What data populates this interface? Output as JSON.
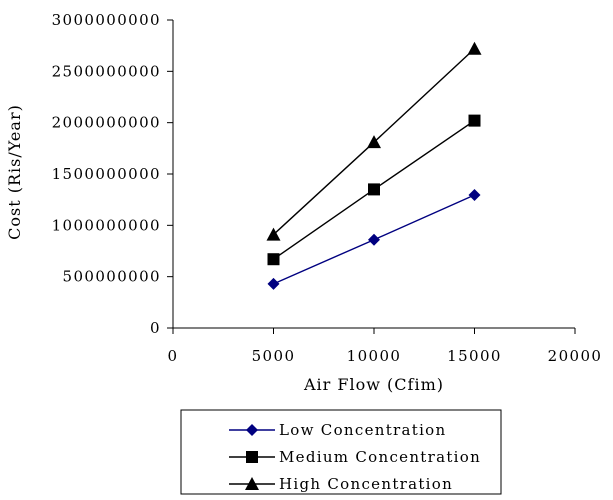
{
  "chart_data": {
    "type": "line",
    "x": [
      5000,
      10000,
      15000
    ],
    "series": [
      {
        "name": "Low Concentration",
        "values": [
          430000000,
          860000000,
          1295000000
        ],
        "color": "#000080",
        "marker": "diamond"
      },
      {
        "name": "Medium Concentration",
        "values": [
          670000000,
          1350000000,
          2020000000
        ],
        "color": "#000000",
        "marker": "square"
      },
      {
        "name": "High Concentration",
        "values": [
          910000000,
          1810000000,
          2720000000
        ],
        "color": "#000000",
        "marker": "triangle"
      }
    ],
    "xlabel": "Air Flow (Cfim)",
    "ylabel": "Cost (Ris/Year)",
    "xlim": [
      0,
      20000
    ],
    "ylim": [
      0,
      3000000000
    ],
    "x_ticks": [
      "0",
      "5000",
      "10000",
      "15000",
      "20000"
    ],
    "y_ticks": [
      "0",
      "500000000",
      "1000000000",
      "1500000000",
      "2000000000",
      "2500000000",
      "3000000000"
    ],
    "grid": false,
    "legend_position": "bottom"
  }
}
